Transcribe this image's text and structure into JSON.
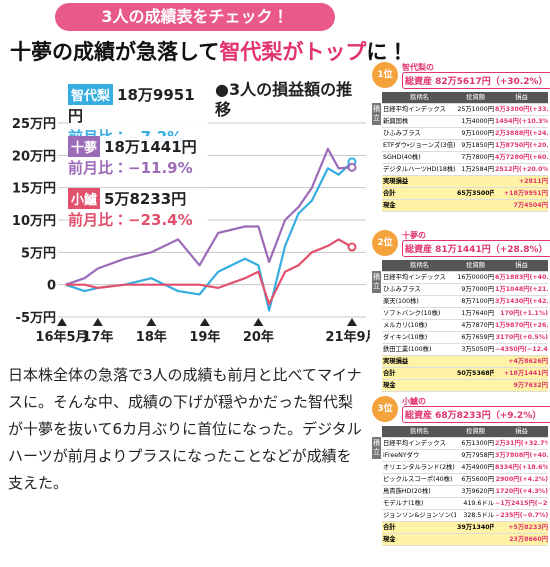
{
  "banner": "3人の成績表をチェック！",
  "headline": [
    "十夢の成績が急落して",
    "智代梨がトップ",
    "に！"
  ],
  "chart_data": {
    "type": "line",
    "title": "●3人の損益額の推移",
    "x": [
      2016.4,
      2016.75,
      2017.0,
      2017.5,
      2018.0,
      2018.5,
      2018.9,
      2019.25,
      2019.75,
      2020.0,
      2020.2,
      2020.5,
      2020.75,
      2021.0,
      2021.3,
      2021.5,
      2021.75
    ],
    "xlim": [
      2016.33,
      2021.75
    ],
    "xticks": [
      {
        "value": 2016.33,
        "label": "16年5月"
      },
      {
        "value": 2017,
        "label": "17年"
      },
      {
        "value": 2018,
        "label": "18年"
      },
      {
        "value": 2019,
        "label": "19年"
      },
      {
        "value": 2020,
        "label": "20年"
      },
      {
        "value": 2021.75,
        "label": "21年9月"
      }
    ],
    "ylim": [
      -5,
      25
    ],
    "yticks": [
      {
        "value": 25,
        "label": "25万円"
      },
      {
        "value": 20,
        "label": "20万円"
      },
      {
        "value": 15,
        "label": "15万円"
      },
      {
        "value": 10,
        "label": "10万円"
      },
      {
        "value": 5,
        "label": "5万円"
      },
      0,
      {
        "value": -5,
        "label": "-5万円"
      }
    ],
    "grid": true,
    "series": [
      {
        "name": "智代梨",
        "color": "#35ade0",
        "total": "18万9951円",
        "change": "前月比：−7.2%",
        "values": [
          0,
          -1,
          -0.5,
          0,
          1,
          -1,
          -1.5,
          2,
          4,
          3,
          -4,
          6,
          11,
          13,
          18,
          17,
          18.99
        ]
      },
      {
        "name": "十夢",
        "color": "#9b6bb8",
        "total": "18万1441円",
        "change": "前月比：−11.9%",
        "values": [
          0,
          1,
          2.5,
          4,
          5,
          7,
          3,
          8,
          9,
          9,
          3.5,
          10,
          12,
          15,
          21,
          18,
          18.14
        ]
      },
      {
        "name": "小鱸",
        "color": "#e2506c",
        "total": "5万8233円",
        "change": "前月比：−23.4%",
        "values": [
          0,
          0,
          -0.5,
          0,
          0,
          0,
          0,
          -0.5,
          1,
          2,
          -3,
          2,
          3,
          5,
          6,
          7,
          5.82
        ]
      }
    ]
  },
  "paragraph": "日本株全体の急落で3人の成績も前月と比べてマイナスに。そんな中、成績の下げが穏やかだった智代梨が十夢を抜いて6カ月ぶりに首位になった。デジタルハーツが前月よりプラスになったことなどが成績を支えた。",
  "panels": [
    {
      "badge": "1位",
      "owner": "智代梨の",
      "total": "総資産 82万5617円（+30.2%）",
      "side_label": "積立",
      "header": [
        "銘柄名",
        "投資額",
        "損益"
      ],
      "rows": [
        [
          "日経平均インデックス",
          "25万1000円",
          "8万3300円(+33.2%)"
        ],
        [
          "新興国株",
          "1万4000円",
          "1454円(+10.3%)"
        ],
        [
          "ひふみプラス",
          "9万1000円",
          "2万3888円(+24.1%)"
        ],
        [
          "ETFダウ・ジョーンズ(3倍)",
          "9万1850円",
          "1万8750円(+20.4%)"
        ],
        [
          "SGHD(40株)",
          "7万7800円",
          "4万7280円(+60.8%)"
        ],
        [
          "デジタルハーツHD(18株)",
          "1万2584円",
          "2512円(+20.0%)"
        ]
      ],
      "summary": [
        [
          "実現損益",
          "+2811円"
        ],
        [
          "合計",
          "65万3500円",
          "+18万9951円"
        ],
        [
          "現金",
          "7万4504円"
        ]
      ]
    },
    {
      "badge": "2位",
      "owner": "十夢の",
      "total": "総資産 81万1441円（+28.8%）",
      "side_label": "積立",
      "header": [
        "銘柄名",
        "投資額",
        "損益"
      ],
      "rows": [
        [
          "日経平均インデックス",
          "16万0000円",
          "6万1883円(+40.2%)"
        ],
        [
          "ひふみプラス",
          "9万7000円",
          "1万1048円(+21.4%)"
        ],
        [
          "楽天(100株)",
          "8万7100円",
          "3万1430円(+42.8%)"
        ],
        [
          "ソフトバンク(10株)",
          "1万7640円",
          "170円(+1.1%)"
        ],
        [
          "メルカリ(10株)",
          "4万7870円",
          "1万9870円(+26.7%)"
        ],
        [
          "ダイキン(10株)",
          "6万7659円",
          "3170円(+0.5%)"
        ],
        [
          "鉄田工業(100株)",
          "3万5050円",
          "−4350円(−12.4%)"
        ]
      ],
      "summary": [
        [
          "実現損益",
          "+4万8626円"
        ],
        [
          "合計",
          "50万5368円",
          "+18万1441円"
        ],
        [
          "現金",
          "9万7632円"
        ]
      ]
    },
    {
      "badge": "3位",
      "owner": "小鱸の",
      "total": "総資産 68万8233円（+9.2%）",
      "side_label": "積立",
      "header": [
        "銘柄名",
        "投資額",
        "損益"
      ],
      "rows": [
        [
          "日経平均インデックス",
          "6万1300円",
          "2万31円(+32.7%)"
        ],
        [
          "iFreeNYダウ",
          "9万7958円",
          "3万7808円(+40.4%)"
        ],
        [
          "オリエンタルランド(2株)",
          "4万4900円",
          "8334円(+18.6%)"
        ],
        [
          "ピックルスコーポ(40株)",
          "6万5600円",
          "2900円(+4.2%)"
        ],
        [
          "鳥貴族HD(20株)",
          "3万9620円",
          "1720円(+4.3%)"
        ],
        [
          "モデルナ(1株)",
          "419.6ドル",
          "−1万2415円(−26.9%)"
        ],
        [
          "ジョンソン&ジョンソン(1株)",
          "328.5ドル",
          "−235円(−0.7%)"
        ]
      ],
      "summary": [
        [
          "合計",
          "39万1340円",
          "+5万8233円"
        ],
        [
          "現金",
          "23万8660円"
        ]
      ]
    }
  ]
}
